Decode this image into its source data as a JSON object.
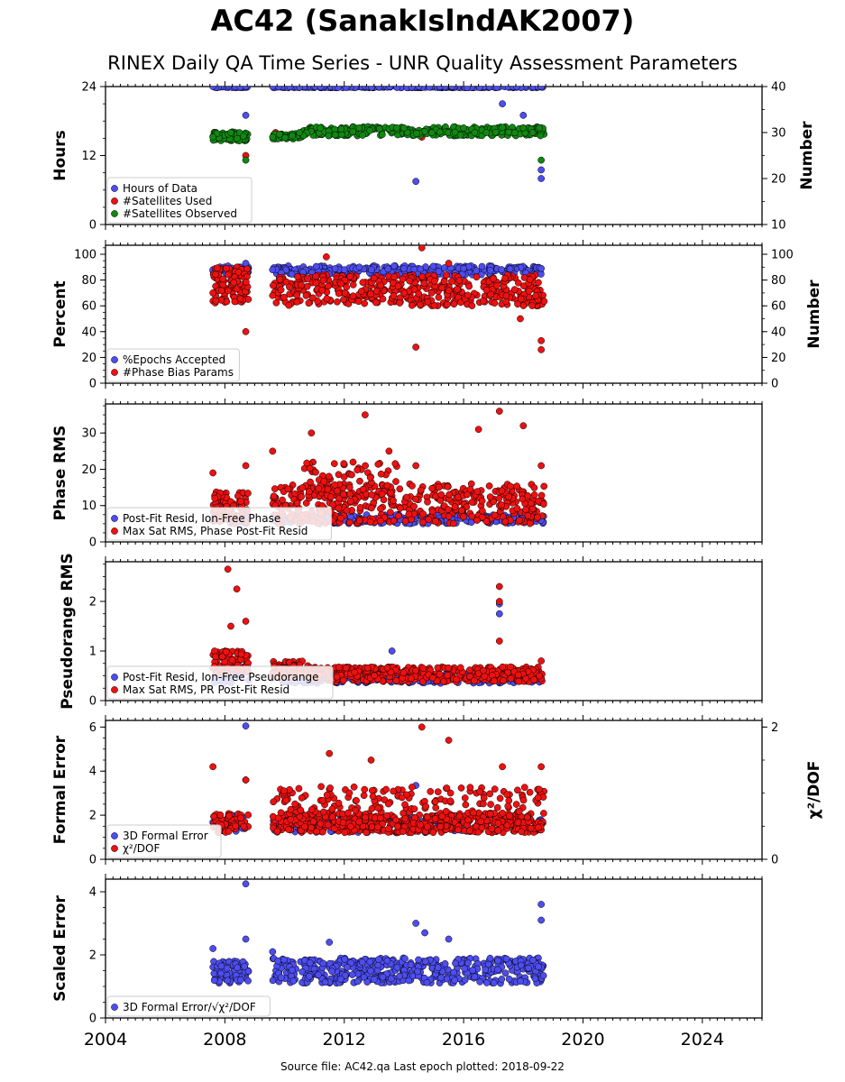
{
  "title": "AC42 (SanakIslndAK2007)",
  "subtitle": "RINEX Daily QA Time Series - UNR Quality Assessment Parameters",
  "source_note": "Source file: AC42.qa Last epoch plotted: 2018-09-22",
  "colors": {
    "blue": "#4d4df0",
    "red": "#ee1111",
    "green": "#118811"
  },
  "x_tick_labels": [
    "2004",
    "2008",
    "2012",
    "2016",
    "2020",
    "2024"
  ],
  "chart_data": [
    {
      "type": "scatter",
      "xlim": [
        2004,
        2026
      ],
      "ylim": [
        0,
        24
      ],
      "y2lim": [
        10,
        40
      ],
      "ylabel": "Hours",
      "y2label": "Number",
      "yticks": [
        "0",
        "12",
        "24"
      ],
      "y2ticks": [
        "10",
        "20",
        "30",
        "40"
      ],
      "legend_placement": "lower-left",
      "series": [
        {
          "name": "Hours of Data",
          "color": "blue",
          "axis": "left",
          "points": [
            [
              2007.6,
              24
            ],
            [
              2008.7,
              24
            ],
            [
              2009.6,
              24
            ],
            [
              2014.5,
              24
            ],
            [
              2018.6,
              24
            ],
            [
              2008.7,
              19
            ],
            [
              2017.3,
              21
            ],
            [
              2018.0,
              19
            ],
            [
              2014.4,
              7.5
            ],
            [
              2018.6,
              9.5
            ],
            [
              2018.6,
              8
            ]
          ]
        },
        {
          "name": "#Satellites Used",
          "color": "red",
          "axis": "right",
          "points": [
            [
              2007.7,
              30
            ],
            [
              2008.7,
              25
            ],
            [
              2009.7,
              30
            ],
            [
              2012.0,
              30
            ],
            [
              2014.6,
              29
            ],
            [
              2018.6,
              31
            ]
          ]
        },
        {
          "name": "#Satellites Observed",
          "color": "green",
          "axis": "right",
          "points": [
            [
              2007.6,
              29
            ],
            [
              2008.2,
              30
            ],
            [
              2008.7,
              24
            ],
            [
              2009.6,
              29
            ],
            [
              2010.5,
              30
            ],
            [
              2011.2,
              31
            ],
            [
              2012.5,
              31
            ],
            [
              2014.0,
              31
            ],
            [
              2016.0,
              31
            ],
            [
              2018.0,
              31
            ],
            [
              2018.6,
              24
            ]
          ]
        }
      ]
    },
    {
      "type": "scatter",
      "xlim": [
        2004,
        2026
      ],
      "ylim": [
        0,
        107
      ],
      "y2lim": [
        0,
        107
      ],
      "ylabel": "Percent",
      "y2label": "Number",
      "yticks": [
        "0",
        "20",
        "40",
        "60",
        "80",
        "100"
      ],
      "y2ticks": [
        "0",
        "20",
        "40",
        "60",
        "80",
        "100"
      ],
      "legend_placement": "lower-left",
      "series": [
        {
          "name": "%Epochs Accepted",
          "color": "blue",
          "axis": "left",
          "points": [
            [
              2007.6,
              88
            ],
            [
              2008.7,
              93
            ],
            [
              2009.6,
              88
            ],
            [
              2012.0,
              88
            ],
            [
              2014.0,
              89
            ],
            [
              2016.0,
              89
            ],
            [
              2018.6,
              89
            ]
          ]
        },
        {
          "name": "#Phase Bias Params",
          "color": "red",
          "axis": "right",
          "points": [
            [
              2007.6,
              70
            ],
            [
              2008.3,
              78
            ],
            [
              2008.7,
              40
            ],
            [
              2009.6,
              68
            ],
            [
              2011.4,
              98
            ],
            [
              2014.4,
              28
            ],
            [
              2014.6,
              105
            ],
            [
              2015.5,
              93
            ],
            [
              2017.9,
              50
            ],
            [
              2018.6,
              33
            ],
            [
              2018.6,
              26
            ]
          ]
        }
      ]
    },
    {
      "type": "scatter",
      "xlim": [
        2004,
        2026
      ],
      "ylim": [
        0,
        38
      ],
      "ylabel": "Phase RMS",
      "yticks": [
        "0",
        "10",
        "20",
        "30"
      ],
      "legend_placement": "lower-left",
      "series": [
        {
          "name": "Post-Fit Resid, Ion-Free Phase",
          "color": "blue",
          "axis": "left",
          "points": [
            [
              2007.6,
              6
            ],
            [
              2009.6,
              6
            ],
            [
              2012.0,
              6
            ],
            [
              2015.0,
              6
            ],
            [
              2018.6,
              6
            ]
          ]
        },
        {
          "name": "Max Sat RMS, Phase Post-Fit Resid",
          "color": "red",
          "axis": "left",
          "points": [
            [
              2007.6,
              19
            ],
            [
              2008.7,
              21
            ],
            [
              2009.6,
              25
            ],
            [
              2010.9,
              30
            ],
            [
              2012.7,
              35
            ],
            [
              2013.5,
              25
            ],
            [
              2014.4,
              21
            ],
            [
              2016.5,
              31
            ],
            [
              2017.2,
              36
            ],
            [
              2018.0,
              32
            ],
            [
              2018.6,
              21
            ]
          ]
        }
      ]
    },
    {
      "type": "scatter",
      "xlim": [
        2004,
        2026
      ],
      "ylim": [
        0,
        2.8
      ],
      "ylabel": "Pseudorange RMS",
      "yticks": [
        "0",
        "1",
        "2"
      ],
      "legend_placement": "lower-left",
      "series": [
        {
          "name": "Post-Fit Resid, Ion-Free Pseudorange",
          "color": "blue",
          "axis": "left",
          "points": [
            [
              2009.6,
              0.45
            ],
            [
              2013.6,
              1.0
            ],
            [
              2017.2,
              1.95
            ],
            [
              2017.2,
              1.75
            ],
            [
              2018.6,
              0.45
            ]
          ]
        },
        {
          "name": "Max Sat RMS, PR Post-Fit Resid",
          "color": "red",
          "axis": "left",
          "points": [
            [
              2008.1,
              2.65
            ],
            [
              2008.4,
              2.25
            ],
            [
              2008.7,
              1.6
            ],
            [
              2008.2,
              1.5
            ],
            [
              2017.2,
              2.3
            ],
            [
              2017.2,
              2.0
            ],
            [
              2017.2,
              1.2
            ],
            [
              2018.6,
              0.8
            ]
          ]
        }
      ]
    },
    {
      "type": "scatter",
      "xlim": [
        2004,
        2026
      ],
      "ylim": [
        0,
        6.3
      ],
      "y2lim": [
        0,
        2.1
      ],
      "ylabel": "Formal Error",
      "y2label": "χ²/DOF",
      "yticks": [
        "0",
        "2",
        "4",
        "6"
      ],
      "y2ticks": [
        "0",
        "2"
      ],
      "legend_placement": "lower-left",
      "series": [
        {
          "name": "3D Formal Error",
          "color": "blue",
          "axis": "left",
          "points": [
            [
              2008.7,
              6.05
            ],
            [
              2008.7,
              3.6
            ],
            [
              2014.4,
              3.35
            ],
            [
              2010.1,
              2.0
            ]
          ]
        },
        {
          "name": "χ²/DOF",
          "color": "red",
          "axis": "right",
          "points": [
            [
              2007.6,
              1.4
            ],
            [
              2008.7,
              1.2
            ],
            [
              2011.5,
              1.6
            ],
            [
              2012.9,
              1.5
            ],
            [
              2014.6,
              2.0
            ],
            [
              2015.5,
              1.8
            ],
            [
              2017.3,
              1.4
            ],
            [
              2018.6,
              1.4
            ]
          ]
        }
      ]
    },
    {
      "type": "scatter",
      "xlim": [
        2004,
        2026
      ],
      "ylim": [
        0,
        4.4
      ],
      "ylabel": "Scaled Error",
      "yticks": [
        "0",
        "2",
        "4"
      ],
      "legend_placement": "lower-left",
      "series": [
        {
          "name": "3D Formal Error/√χ²/DOF",
          "color": "blue",
          "axis": "left",
          "points": [
            [
              2007.6,
              2.2
            ],
            [
              2008.7,
              4.25
            ],
            [
              2008.7,
              2.5
            ],
            [
              2009.6,
              2.1
            ],
            [
              2011.5,
              2.4
            ],
            [
              2014.4,
              3.0
            ],
            [
              2014.7,
              2.7
            ],
            [
              2015.5,
              2.5
            ],
            [
              2018.6,
              3.6
            ],
            [
              2018.6,
              3.1
            ]
          ]
        }
      ]
    }
  ]
}
